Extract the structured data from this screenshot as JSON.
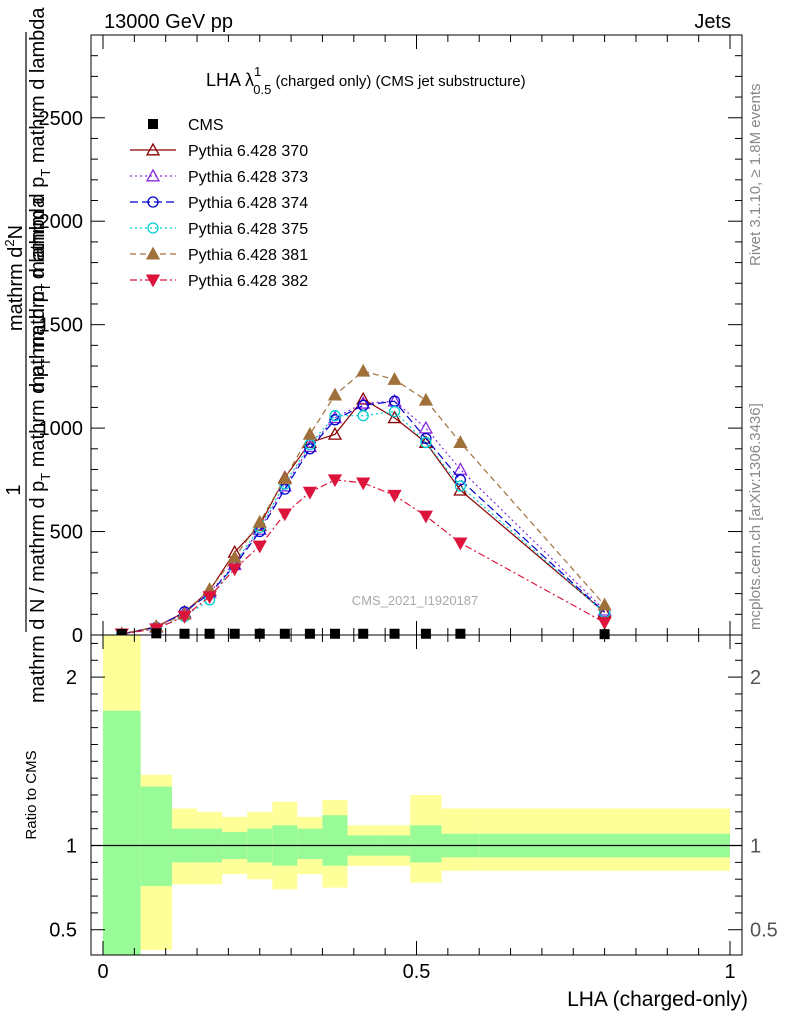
{
  "header": {
    "left": "13000 GeV pp",
    "right": "Jets"
  },
  "side_labels": {
    "rivet": "Rivet 3.1.10, ≥ 1.8M events",
    "mcplots": "mcplots.cern.ch [arXiv:1306.3436]"
  },
  "chart_data": [
    {
      "type": "line",
      "title": "LHA λ",
      "title_sup": "1",
      "title_sub": "0.5",
      "title_suffix": " (charged only) (CMS jet substructure)",
      "watermark": "CMS_2021_I1920187",
      "ylabel_numerator": "1",
      "ylabel_numerator_fraction": "mathrm d",
      "ylabel_numerator_fraction_sup": "2",
      "ylabel_numerator_fraction_rest": "N",
      "ylabel_denominator": "mathrm d N / mathrm d p",
      "ylabel_denominator_sub": "T",
      "ylabel_denominator_rest": " mathrm d p",
      "ylabel_denominator_sub2": "T",
      "ylabel_denominator_rest2": " mathrm d lambda",
      "xlim": [
        0,
        1
      ],
      "ylim": [
        0,
        2900
      ],
      "y_ticks": [
        0,
        500,
        1000,
        1500,
        2000,
        2500
      ],
      "y_tick_labels": [
        "0",
        "500",
        "1000",
        "1500",
        "2000",
        "2500"
      ],
      "legend_position": "top-left",
      "x": [
        0.03,
        0.085,
        0.13,
        0.17,
        0.21,
        0.25,
        0.29,
        0.33,
        0.37,
        0.415,
        0.465,
        0.515,
        0.57,
        0.8
      ],
      "cms": [
        5,
        8,
        6,
        6,
        6,
        6,
        6,
        6,
        6,
        6,
        6,
        6,
        6,
        4
      ],
      "series": [
        {
          "name": "Pythia 6.428 370",
          "color": "#8b0000",
          "marker": "triangle-open",
          "dash": "",
          "values": [
            5,
            40,
            110,
            215,
            400,
            530,
            760,
            930,
            970,
            1140,
            1050,
            930,
            700,
            110
          ]
        },
        {
          "name": "Pythia 6.428 373",
          "color": "#8a2be2",
          "marker": "triangle-open",
          "dash": "2,3",
          "values": [
            5,
            38,
            108,
            205,
            340,
            510,
            720,
            910,
            1050,
            1120,
            1130,
            1000,
            800,
            120
          ]
        },
        {
          "name": "Pythia 6.428 374",
          "color": "#0000cd",
          "marker": "circle-open",
          "dash": "8,4",
          "values": [
            5,
            36,
            112,
            200,
            335,
            500,
            705,
            900,
            1040,
            1110,
            1130,
            950,
            750,
            110
          ]
        },
        {
          "name": "Pythia 6.428 375",
          "color": "#00ced1",
          "marker": "circle-open",
          "dash": "2,3",
          "values": [
            5,
            33,
            90,
            170,
            345,
            520,
            730,
            920,
            1060,
            1060,
            1080,
            930,
            720,
            108
          ]
        },
        {
          "name": "Pythia 6.428 381",
          "color": "#a0703a",
          "marker": "triangle-filled",
          "dash": "6,4",
          "values": [
            5,
            40,
            100,
            220,
            375,
            545,
            755,
            970,
            1160,
            1275,
            1235,
            1135,
            930,
            145
          ]
        },
        {
          "name": "Pythia 6.428 382",
          "color": "#dc143c",
          "marker": "triangle-down-filled",
          "dash": "7,3,2,3",
          "values": [
            5,
            30,
            90,
            185,
            320,
            430,
            585,
            690,
            750,
            735,
            675,
            575,
            445,
            60
          ]
        }
      ],
      "cms_label": "CMS"
    },
    {
      "type": "area",
      "ylabel": "Ratio to CMS",
      "xlabel": "LHA (charged-only)",
      "xlim": [
        0,
        1
      ],
      "ylim": [
        0.35,
        2.25
      ],
      "x_ticks": [
        0,
        0.5,
        1
      ],
      "x_tick_labels": [
        "0",
        "0.5",
        "1"
      ],
      "y_ticks": [
        0.5,
        1,
        2
      ],
      "y_tick_labels": [
        "0.5",
        "1",
        "2"
      ],
      "bin_edges": [
        0,
        0.06,
        0.11,
        0.15,
        0.19,
        0.23,
        0.27,
        0.31,
        0.35,
        0.39,
        0.44,
        0.49,
        0.54,
        0.6,
        1.0
      ],
      "band_inner_up": [
        1.8,
        1.35,
        1.1,
        1.1,
        1.08,
        1.1,
        1.12,
        1.1,
        1.18,
        1.06,
        1.06,
        1.12,
        1.07,
        1.07
      ],
      "band_inner_down": [
        0.35,
        0.76,
        0.9,
        0.9,
        0.92,
        0.9,
        0.88,
        0.92,
        0.88,
        0.94,
        0.94,
        0.9,
        0.93,
        0.93
      ],
      "band_outer_up": [
        2.25,
        1.42,
        1.22,
        1.2,
        1.17,
        1.2,
        1.26,
        1.17,
        1.27,
        1.12,
        1.12,
        1.3,
        1.22,
        1.22
      ],
      "band_outer_down": [
        0.35,
        0.38,
        0.77,
        0.77,
        0.83,
        0.8,
        0.74,
        0.83,
        0.75,
        0.88,
        0.88,
        0.78,
        0.85,
        0.85
      ],
      "colors": {
        "inner": "#98fb98",
        "outer": "#ffff9a",
        "line": "#000000"
      }
    }
  ]
}
